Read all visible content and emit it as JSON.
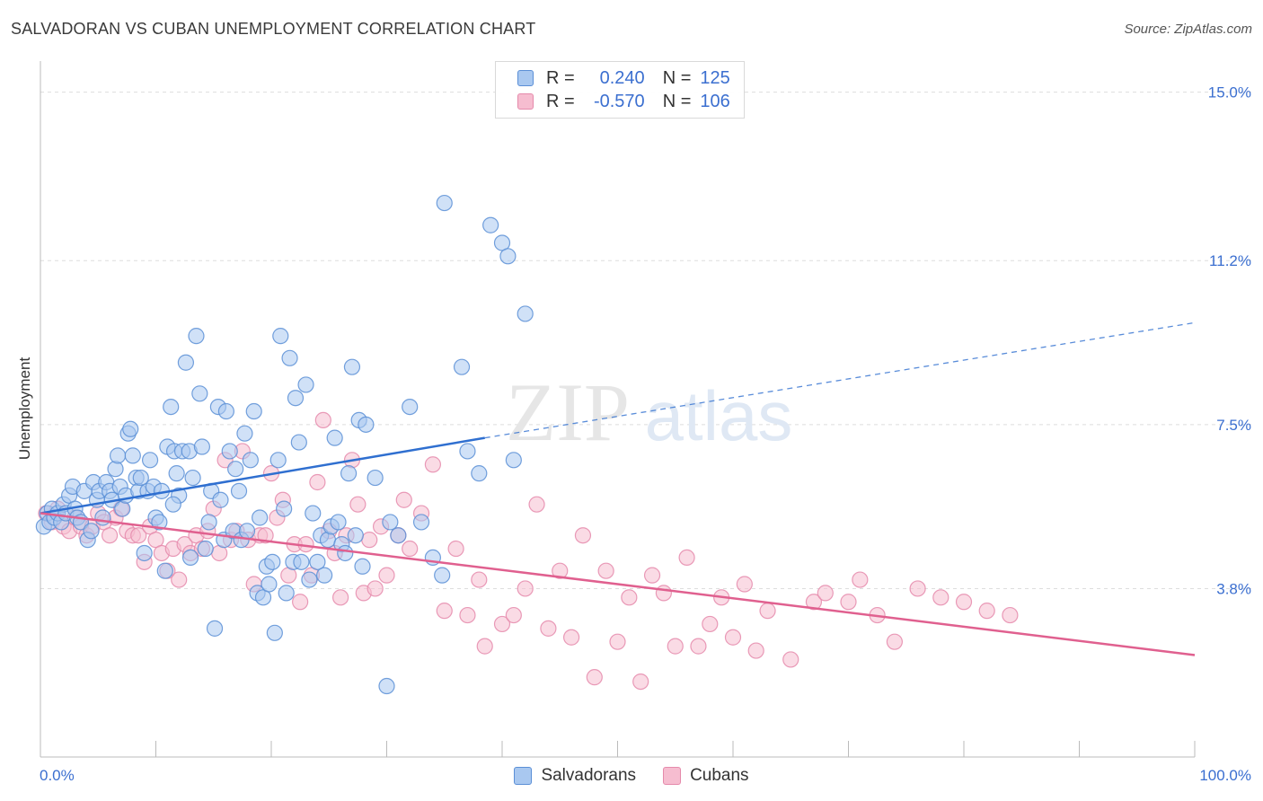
{
  "title": "SALVADORAN VS CUBAN UNEMPLOYMENT CORRELATION CHART",
  "source": "Source: ZipAtlas.com",
  "watermark": {
    "zip": "ZIP",
    "atlas": "atlas"
  },
  "legend": {
    "rows": [
      {
        "r_label": "R =",
        "r_value": "0.240",
        "n_label": "N =",
        "n_value": "125"
      },
      {
        "r_label": "R =",
        "r_value": "-0.570",
        "n_label": "N =",
        "n_value": "106"
      }
    ]
  },
  "bottom_legend": [
    {
      "label": "Salvadorans"
    },
    {
      "label": "Cubans"
    }
  ],
  "colors": {
    "blue_fill": "#a9c8f0",
    "blue_stroke": "#5b8fd6",
    "blue_line": "#2f6fd0",
    "pink_fill": "#f6bdd0",
    "pink_stroke": "#e58aab",
    "pink_line": "#e0608f",
    "tick_label": "#3b6fd0",
    "grid": "#dddddd"
  },
  "chart_data": {
    "type": "scatter",
    "title": "SALVADORAN VS CUBAN UNEMPLOYMENT CORRELATION CHART",
    "xlabel": "",
    "ylabel": "Unemployment",
    "xlim": [
      0,
      100
    ],
    "ylim": [
      0,
      15.5
    ],
    "x_tick_labels": [
      "0.0%",
      "100.0%"
    ],
    "y_ticks": [
      3.8,
      7.5,
      11.2,
      15.0
    ],
    "y_tick_labels": [
      "3.8%",
      "7.5%",
      "11.2%",
      "15.0%"
    ],
    "grid": true,
    "legend_position": "top-center",
    "series": [
      {
        "name": "Salvadorans",
        "trend": {
          "x": [
            0,
            38.5
          ],
          "y": [
            5.5,
            7.2
          ],
          "dashed_to": {
            "x": 100,
            "y": 9.8
          }
        },
        "points": [
          [
            0.3,
            5.2
          ],
          [
            0.6,
            5.5
          ],
          [
            0.8,
            5.3
          ],
          [
            1.0,
            5.6
          ],
          [
            1.2,
            5.4
          ],
          [
            1.5,
            5.5
          ],
          [
            1.8,
            5.3
          ],
          [
            2.0,
            5.7
          ],
          [
            2.2,
            5.5
          ],
          [
            2.5,
            5.9
          ],
          [
            2.8,
            6.1
          ],
          [
            3.0,
            5.6
          ],
          [
            3.2,
            5.4
          ],
          [
            3.5,
            5.3
          ],
          [
            3.8,
            6.0
          ],
          [
            4.1,
            4.9
          ],
          [
            4.4,
            5.1
          ],
          [
            4.6,
            6.2
          ],
          [
            4.9,
            5.8
          ],
          [
            5.1,
            6.0
          ],
          [
            5.4,
            5.4
          ],
          [
            5.7,
            6.2
          ],
          [
            6.0,
            6.0
          ],
          [
            6.2,
            5.8
          ],
          [
            6.5,
            6.5
          ],
          [
            6.7,
            6.8
          ],
          [
            6.9,
            6.1
          ],
          [
            7.1,
            5.6
          ],
          [
            7.4,
            5.9
          ],
          [
            7.6,
            7.3
          ],
          [
            7.8,
            7.4
          ],
          [
            8.0,
            6.8
          ],
          [
            8.3,
            6.3
          ],
          [
            8.5,
            6.0
          ],
          [
            8.7,
            6.3
          ],
          [
            9.0,
            4.6
          ],
          [
            9.3,
            6.0
          ],
          [
            9.5,
            6.7
          ],
          [
            9.8,
            6.1
          ],
          [
            10.0,
            5.4
          ],
          [
            10.3,
            5.3
          ],
          [
            10.5,
            6.0
          ],
          [
            10.8,
            4.2
          ],
          [
            11.0,
            7.0
          ],
          [
            11.3,
            7.9
          ],
          [
            11.6,
            6.9
          ],
          [
            11.8,
            6.4
          ],
          [
            12.0,
            5.9
          ],
          [
            12.3,
            6.9
          ],
          [
            12.6,
            8.9
          ],
          [
            12.9,
            6.9
          ],
          [
            13.2,
            6.3
          ],
          [
            13.5,
            9.5
          ],
          [
            13.8,
            8.2
          ],
          [
            14.0,
            7.0
          ],
          [
            14.3,
            4.7
          ],
          [
            14.6,
            5.3
          ],
          [
            14.8,
            6.0
          ],
          [
            15.1,
            2.9
          ],
          [
            15.4,
            7.9
          ],
          [
            15.6,
            5.8
          ],
          [
            15.9,
            4.9
          ],
          [
            16.1,
            7.8
          ],
          [
            16.4,
            6.9
          ],
          [
            16.7,
            5.1
          ],
          [
            16.9,
            6.5
          ],
          [
            17.2,
            6.0
          ],
          [
            17.4,
            4.9
          ],
          [
            17.7,
            7.3
          ],
          [
            17.9,
            5.1
          ],
          [
            18.2,
            6.7
          ],
          [
            18.5,
            7.8
          ],
          [
            18.8,
            3.7
          ],
          [
            19.0,
            5.4
          ],
          [
            19.3,
            3.6
          ],
          [
            19.6,
            4.3
          ],
          [
            19.8,
            3.9
          ],
          [
            20.1,
            4.4
          ],
          [
            20.3,
            2.8
          ],
          [
            20.6,
            6.7
          ],
          [
            20.8,
            9.5
          ],
          [
            21.1,
            5.6
          ],
          [
            21.3,
            3.7
          ],
          [
            21.6,
            9.0
          ],
          [
            21.9,
            4.4
          ],
          [
            22.1,
            8.1
          ],
          [
            22.4,
            7.1
          ],
          [
            22.6,
            4.4
          ],
          [
            23.0,
            8.4
          ],
          [
            23.3,
            4.0
          ],
          [
            23.6,
            5.5
          ],
          [
            24.0,
            4.4
          ],
          [
            24.3,
            5.0
          ],
          [
            24.6,
            4.1
          ],
          [
            24.9,
            4.9
          ],
          [
            25.2,
            5.2
          ],
          [
            25.5,
            7.2
          ],
          [
            25.8,
            5.3
          ],
          [
            26.1,
            4.8
          ],
          [
            26.4,
            4.6
          ],
          [
            26.7,
            6.4
          ],
          [
            27.0,
            8.8
          ],
          [
            27.3,
            5.0
          ],
          [
            27.6,
            7.6
          ],
          [
            27.9,
            4.3
          ],
          [
            28.2,
            7.5
          ],
          [
            30.0,
            1.6
          ],
          [
            30.3,
            5.3
          ],
          [
            31.0,
            5.0
          ],
          [
            32.0,
            7.9
          ],
          [
            34.0,
            4.5
          ],
          [
            35.0,
            12.5
          ],
          [
            38.0,
            6.4
          ],
          [
            39.0,
            12.0
          ],
          [
            40.0,
            11.6
          ],
          [
            40.5,
            11.3
          ],
          [
            41.0,
            6.7
          ],
          [
            42.0,
            10.0
          ],
          [
            36.5,
            8.8
          ],
          [
            29.0,
            6.3
          ],
          [
            33.0,
            5.3
          ],
          [
            37.0,
            6.9
          ],
          [
            34.8,
            4.1
          ],
          [
            13.0,
            4.5
          ],
          [
            11.5,
            5.7
          ]
        ]
      },
      {
        "name": "Cubans",
        "trend": {
          "x": [
            0,
            100
          ],
          "y": [
            5.5,
            2.3
          ]
        },
        "points": [
          [
            0.5,
            5.5
          ],
          [
            1.0,
            5.3
          ],
          [
            1.5,
            5.6
          ],
          [
            2.0,
            5.2
          ],
          [
            2.5,
            5.1
          ],
          [
            3.0,
            5.4
          ],
          [
            3.5,
            5.2
          ],
          [
            4.0,
            5.0
          ],
          [
            4.5,
            5.2
          ],
          [
            5.0,
            5.5
          ],
          [
            5.5,
            5.3
          ],
          [
            6.0,
            5.0
          ],
          [
            6.5,
            5.4
          ],
          [
            7.0,
            5.6
          ],
          [
            7.5,
            5.1
          ],
          [
            8.0,
            5.0
          ],
          [
            8.5,
            5.0
          ],
          [
            9.0,
            4.4
          ],
          [
            9.5,
            5.2
          ],
          [
            10.0,
            4.9
          ],
          [
            10.5,
            4.6
          ],
          [
            11.0,
            4.2
          ],
          [
            11.5,
            4.7
          ],
          [
            12.0,
            4.0
          ],
          [
            12.5,
            4.8
          ],
          [
            13.0,
            4.6
          ],
          [
            13.5,
            5.0
          ],
          [
            14.0,
            4.7
          ],
          [
            14.5,
            5.1
          ],
          [
            15.0,
            5.6
          ],
          [
            15.5,
            4.6
          ],
          [
            16.0,
            6.7
          ],
          [
            16.5,
            4.9
          ],
          [
            17.0,
            5.1
          ],
          [
            17.5,
            6.9
          ],
          [
            18.0,
            4.9
          ],
          [
            18.5,
            3.9
          ],
          [
            19.0,
            5.0
          ],
          [
            19.5,
            5.0
          ],
          [
            20.0,
            6.4
          ],
          [
            20.5,
            5.4
          ],
          [
            21.0,
            5.8
          ],
          [
            21.5,
            4.1
          ],
          [
            22.0,
            4.8
          ],
          [
            22.5,
            3.5
          ],
          [
            23.0,
            4.8
          ],
          [
            23.5,
            4.1
          ],
          [
            24.0,
            6.2
          ],
          [
            24.5,
            7.6
          ],
          [
            25.0,
            5.1
          ],
          [
            25.5,
            4.6
          ],
          [
            26.0,
            3.6
          ],
          [
            26.5,
            5.0
          ],
          [
            27.0,
            6.7
          ],
          [
            27.5,
            5.7
          ],
          [
            28.0,
            3.7
          ],
          [
            28.5,
            4.9
          ],
          [
            29.0,
            3.8
          ],
          [
            29.5,
            5.2
          ],
          [
            30.0,
            4.1
          ],
          [
            31.0,
            5.0
          ],
          [
            31.5,
            5.8
          ],
          [
            32.0,
            4.7
          ],
          [
            33.0,
            5.5
          ],
          [
            34.0,
            6.6
          ],
          [
            35.0,
            3.3
          ],
          [
            36.0,
            4.7
          ],
          [
            37.0,
            3.2
          ],
          [
            38.0,
            4.0
          ],
          [
            38.5,
            2.5
          ],
          [
            40.0,
            3.0
          ],
          [
            41.0,
            3.2
          ],
          [
            42.0,
            3.8
          ],
          [
            43.0,
            5.7
          ],
          [
            44.0,
            2.9
          ],
          [
            45.0,
            4.2
          ],
          [
            46.0,
            2.7
          ],
          [
            47.0,
            5.0
          ],
          [
            48.0,
            1.8
          ],
          [
            49.0,
            4.2
          ],
          [
            50.0,
            2.6
          ],
          [
            51.0,
            3.6
          ],
          [
            52.0,
            1.7
          ],
          [
            53.0,
            4.1
          ],
          [
            54.0,
            3.7
          ],
          [
            55.0,
            2.5
          ],
          [
            56.0,
            4.5
          ],
          [
            57.0,
            2.5
          ],
          [
            58.0,
            3.0
          ],
          [
            59.0,
            3.6
          ],
          [
            60.0,
            2.7
          ],
          [
            61.0,
            3.9
          ],
          [
            62.0,
            2.4
          ],
          [
            63.0,
            3.3
          ],
          [
            65.0,
            2.2
          ],
          [
            67.0,
            3.5
          ],
          [
            68.0,
            3.7
          ],
          [
            70.0,
            3.5
          ],
          [
            71.0,
            4.0
          ],
          [
            72.5,
            3.2
          ],
          [
            74.0,
            2.6
          ],
          [
            76.0,
            3.8
          ],
          [
            78.0,
            3.6
          ],
          [
            80.0,
            3.5
          ],
          [
            82.0,
            3.3
          ],
          [
            84.0,
            3.2
          ]
        ]
      }
    ]
  }
}
